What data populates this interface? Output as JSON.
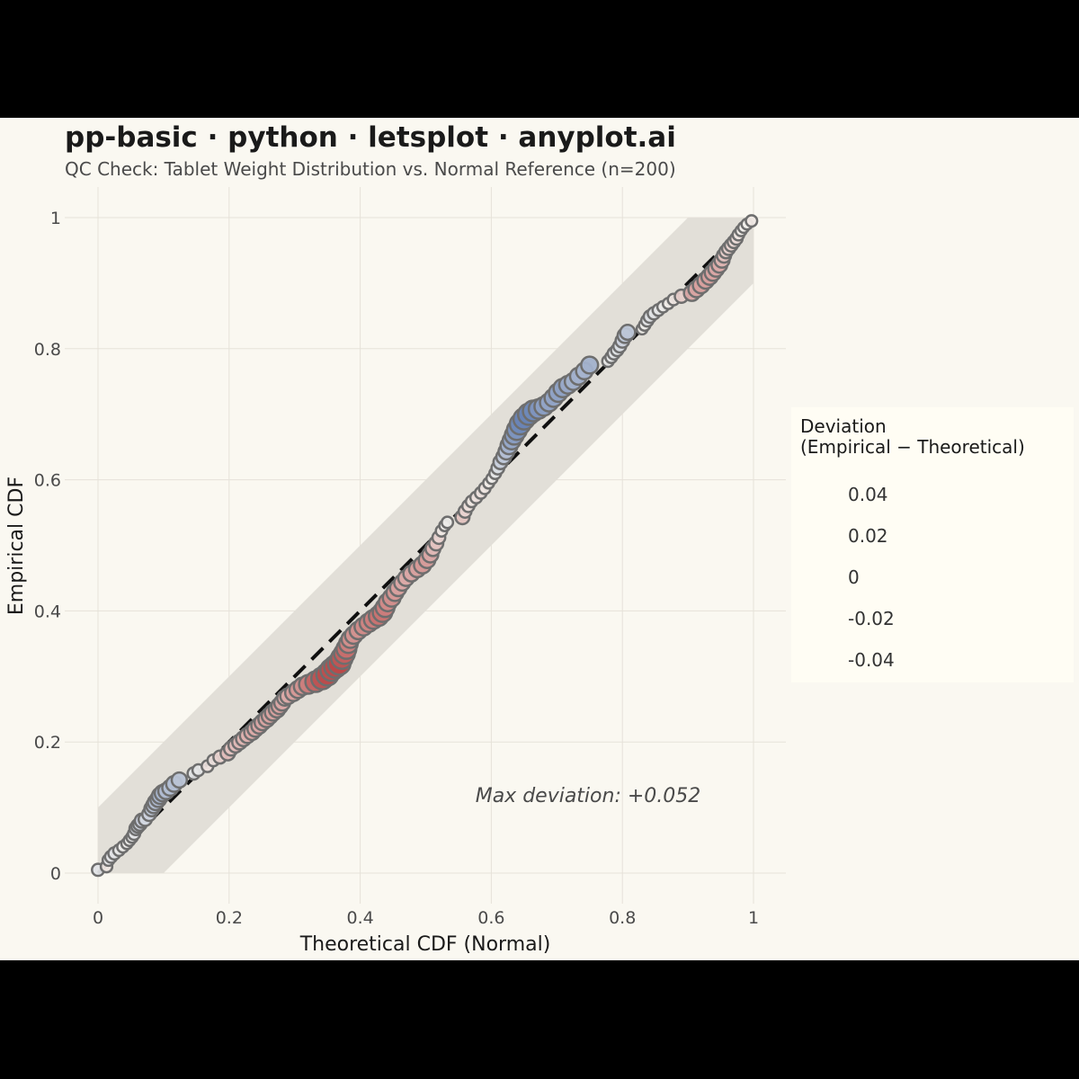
{
  "title": "pp-basic · python · letsplot · anyplot.ai",
  "subtitle": "QC Check: Tablet Weight Distribution vs. Normal Reference (n=200)",
  "colors": {
    "background": "#faf8f1",
    "band": "#e2dfd8",
    "reference_line": "#111111",
    "positive": "#4c6daa",
    "negative": "#b53b3b",
    "neutral": "#f2f0ec",
    "point_stroke": "#6e6e6e"
  },
  "chart_data": {
    "type": "scatter",
    "title": "pp-basic · python · letsplot · anyplot.ai",
    "subtitle": "QC Check: Tablet Weight Distribution vs. Normal Reference (n=200)",
    "xlabel": "Theoretical CDF (Normal)",
    "ylabel": "Empirical CDF",
    "xlim": [
      0,
      1
    ],
    "ylim": [
      0,
      1
    ],
    "x_ticks": [
      "0",
      "0.2",
      "0.4",
      "0.6",
      "0.8",
      "1"
    ],
    "y_ticks": [
      "0",
      "0.2",
      "0.4",
      "0.6",
      "0.8",
      "1"
    ],
    "grid": true,
    "reference_line": "y = x (dashed)",
    "confidence_band_halfwidth": 0.1,
    "annotation": "Max deviation: +0.052",
    "legend": {
      "title_line1": "Deviation",
      "title_line2": "(Empirical − Theoretical)",
      "placement": "right",
      "ticks": [
        "0.04",
        "0.02",
        "0",
        "-0.02",
        "-0.04"
      ],
      "range": [
        -0.05,
        0.055
      ]
    },
    "points": [
      [
        0.0,
        0.005
      ],
      [
        0.013,
        0.01
      ],
      [
        0.016,
        0.02
      ],
      [
        0.02,
        0.025
      ],
      [
        0.025,
        0.03
      ],
      [
        0.032,
        0.035
      ],
      [
        0.038,
        0.04
      ],
      [
        0.044,
        0.045
      ],
      [
        0.048,
        0.05
      ],
      [
        0.052,
        0.055
      ],
      [
        0.055,
        0.06
      ],
      [
        0.058,
        0.068
      ],
      [
        0.061,
        0.072
      ],
      [
        0.064,
        0.075
      ],
      [
        0.067,
        0.08
      ],
      [
        0.072,
        0.082
      ],
      [
        0.078,
        0.09
      ],
      [
        0.082,
        0.098
      ],
      [
        0.085,
        0.103
      ],
      [
        0.088,
        0.108
      ],
      [
        0.092,
        0.113
      ],
      [
        0.095,
        0.118
      ],
      [
        0.099,
        0.122
      ],
      [
        0.104,
        0.125
      ],
      [
        0.11,
        0.13
      ],
      [
        0.116,
        0.136
      ],
      [
        0.124,
        0.142
      ],
      [
        0.146,
        0.152
      ],
      [
        0.153,
        0.157
      ],
      [
        0.167,
        0.163
      ],
      [
        0.176,
        0.172
      ],
      [
        0.186,
        0.177
      ],
      [
        0.198,
        0.183
      ],
      [
        0.203,
        0.19
      ],
      [
        0.21,
        0.195
      ],
      [
        0.216,
        0.2
      ],
      [
        0.222,
        0.205
      ],
      [
        0.228,
        0.21
      ],
      [
        0.235,
        0.215
      ],
      [
        0.24,
        0.22
      ],
      [
        0.246,
        0.225
      ],
      [
        0.251,
        0.23
      ],
      [
        0.257,
        0.235
      ],
      [
        0.262,
        0.24
      ],
      [
        0.267,
        0.245
      ],
      [
        0.273,
        0.25
      ],
      [
        0.277,
        0.255
      ],
      [
        0.281,
        0.26
      ],
      [
        0.285,
        0.267
      ],
      [
        0.29,
        0.27
      ],
      [
        0.298,
        0.275
      ],
      [
        0.305,
        0.28
      ],
      [
        0.312,
        0.285
      ],
      [
        0.321,
        0.288
      ],
      [
        0.332,
        0.292
      ],
      [
        0.342,
        0.297
      ],
      [
        0.35,
        0.303
      ],
      [
        0.356,
        0.31
      ],
      [
        0.362,
        0.315
      ],
      [
        0.368,
        0.32
      ],
      [
        0.372,
        0.328
      ],
      [
        0.376,
        0.335
      ],
      [
        0.379,
        0.342
      ],
      [
        0.382,
        0.35
      ],
      [
        0.385,
        0.357
      ],
      [
        0.39,
        0.363
      ],
      [
        0.397,
        0.37
      ],
      [
        0.405,
        0.376
      ],
      [
        0.413,
        0.382
      ],
      [
        0.42,
        0.387
      ],
      [
        0.428,
        0.392
      ],
      [
        0.434,
        0.398
      ],
      [
        0.438,
        0.405
      ],
      [
        0.442,
        0.413
      ],
      [
        0.448,
        0.42
      ],
      [
        0.453,
        0.428
      ],
      [
        0.458,
        0.435
      ],
      [
        0.464,
        0.443
      ],
      [
        0.47,
        0.45
      ],
      [
        0.478,
        0.457
      ],
      [
        0.487,
        0.464
      ],
      [
        0.495,
        0.47
      ],
      [
        0.502,
        0.478
      ],
      [
        0.507,
        0.486
      ],
      [
        0.511,
        0.495
      ],
      [
        0.516,
        0.503
      ],
      [
        0.52,
        0.512
      ],
      [
        0.524,
        0.522
      ],
      [
        0.529,
        0.53
      ],
      [
        0.533,
        0.535
      ],
      [
        0.556,
        0.543
      ],
      [
        0.56,
        0.552
      ],
      [
        0.565,
        0.56
      ],
      [
        0.57,
        0.567
      ],
      [
        0.577,
        0.573
      ],
      [
        0.584,
        0.58
      ],
      [
        0.59,
        0.587
      ],
      [
        0.596,
        0.595
      ],
      [
        0.601,
        0.602
      ],
      [
        0.606,
        0.61
      ],
      [
        0.61,
        0.618
      ],
      [
        0.614,
        0.627
      ],
      [
        0.619,
        0.635
      ],
      [
        0.623,
        0.643
      ],
      [
        0.627,
        0.652
      ],
      [
        0.631,
        0.66
      ],
      [
        0.635,
        0.668
      ],
      [
        0.639,
        0.676
      ],
      [
        0.644,
        0.685
      ],
      [
        0.65,
        0.693
      ],
      [
        0.657,
        0.7
      ],
      [
        0.664,
        0.705
      ],
      [
        0.672,
        0.708
      ],
      [
        0.68,
        0.712
      ],
      [
        0.688,
        0.718
      ],
      [
        0.695,
        0.725
      ],
      [
        0.702,
        0.733
      ],
      [
        0.709,
        0.74
      ],
      [
        0.717,
        0.745
      ],
      [
        0.725,
        0.75
      ],
      [
        0.733,
        0.758
      ],
      [
        0.742,
        0.766
      ],
      [
        0.75,
        0.775
      ],
      [
        0.778,
        0.781
      ],
      [
        0.783,
        0.787
      ],
      [
        0.787,
        0.793
      ],
      [
        0.792,
        0.798
      ],
      [
        0.796,
        0.804
      ],
      [
        0.8,
        0.812
      ],
      [
        0.804,
        0.82
      ],
      [
        0.808,
        0.825
      ],
      [
        0.83,
        0.83
      ],
      [
        0.834,
        0.836
      ],
      [
        0.838,
        0.843
      ],
      [
        0.842,
        0.849
      ],
      [
        0.848,
        0.854
      ],
      [
        0.855,
        0.859
      ],
      [
        0.862,
        0.864
      ],
      [
        0.87,
        0.869
      ],
      [
        0.878,
        0.875
      ],
      [
        0.89,
        0.88
      ],
      [
        0.906,
        0.885
      ],
      [
        0.913,
        0.891
      ],
      [
        0.92,
        0.897
      ],
      [
        0.927,
        0.904
      ],
      [
        0.933,
        0.91
      ],
      [
        0.938,
        0.916
      ],
      [
        0.943,
        0.922
      ],
      [
        0.948,
        0.928
      ],
      [
        0.952,
        0.935
      ],
      [
        0.955,
        0.942
      ],
      [
        0.958,
        0.948
      ],
      [
        0.962,
        0.953
      ],
      [
        0.966,
        0.958
      ],
      [
        0.97,
        0.963
      ],
      [
        0.974,
        0.968
      ],
      [
        0.977,
        0.974
      ],
      [
        0.981,
        0.98
      ],
      [
        0.985,
        0.985
      ],
      [
        0.99,
        0.99
      ],
      [
        0.997,
        0.995
      ]
    ]
  }
}
